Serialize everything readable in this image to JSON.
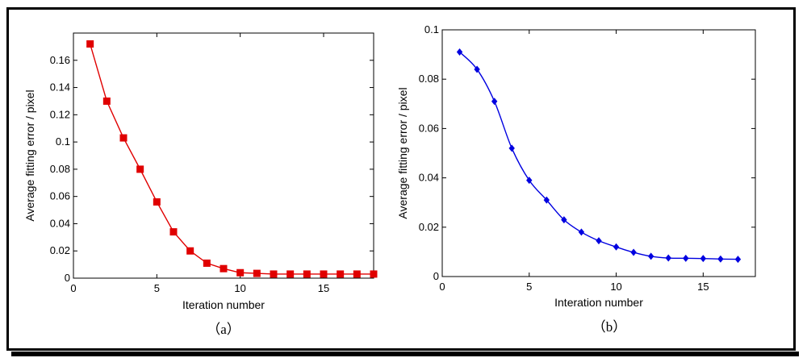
{
  "chart_data": [
    {
      "type": "line",
      "panel_label": "（a）",
      "xlabel": "Iteration number",
      "ylabel": "Average fitting error / pixel",
      "xlim": [
        0,
        18
      ],
      "ylim": [
        0,
        0.18
      ],
      "x_ticks": [
        0,
        5,
        10,
        15
      ],
      "y_ticks": [
        0,
        0.02,
        0.04,
        0.06,
        0.08,
        0.1,
        0.12,
        0.14,
        0.16
      ],
      "y_tick_labels": [
        "0",
        "0.02",
        "0.04",
        "0.06",
        "0.08",
        "0.1",
        "0.12",
        "0.14",
        "0.16"
      ],
      "marker": "square",
      "color": "#e00000",
      "series": [
        {
          "x": [
            1,
            2,
            3,
            4,
            5,
            6,
            7,
            8,
            9,
            10,
            11,
            12,
            13,
            14,
            15,
            16,
            17,
            18
          ],
          "y": [
            0.172,
            0.13,
            0.103,
            0.08,
            0.056,
            0.034,
            0.02,
            0.011,
            0.007,
            0.004,
            0.0035,
            0.003,
            0.003,
            0.003,
            0.003,
            0.003,
            0.003,
            0.003
          ]
        }
      ]
    },
    {
      "type": "line",
      "panel_label": "（b）",
      "xlabel": "Interation number",
      "ylabel": "Average fitting error / pixel",
      "xlim": [
        0,
        18
      ],
      "ylim": [
        0,
        0.1
      ],
      "x_ticks": [
        0,
        5,
        10,
        15
      ],
      "y_ticks": [
        0,
        0.02,
        0.04,
        0.06,
        0.08,
        0.1
      ],
      "y_tick_labels": [
        "0",
        "0.02",
        "0.04",
        "0.06",
        "0.08",
        "0.1"
      ],
      "marker": "diamond",
      "color": "#0000e0",
      "series": [
        {
          "x": [
            1,
            2,
            3,
            4,
            5,
            6,
            7,
            8,
            9,
            10,
            11,
            12,
            13,
            14,
            15,
            16,
            17
          ],
          "y": [
            0.091,
            0.084,
            0.071,
            0.052,
            0.039,
            0.031,
            0.023,
            0.018,
            0.0145,
            0.012,
            0.0098,
            0.0082,
            0.0075,
            0.0074,
            0.0073,
            0.0071,
            0.007
          ]
        }
      ]
    }
  ]
}
